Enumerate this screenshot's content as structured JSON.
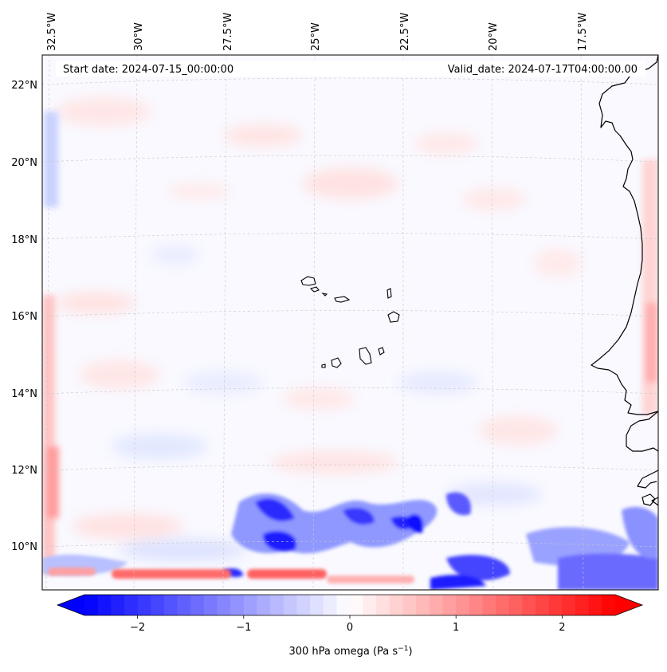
{
  "map": {
    "start_date_label": "Start date: 2024-07-15_00:00:00",
    "valid_date_label": "Valid_date: 2024-07-17T04:00:00.00",
    "lon_ticks": [
      "32.5°W",
      "30°W",
      "27.5°W",
      "25°W",
      "22.5°W",
      "20°W",
      "17.5°W"
    ],
    "lat_ticks": [
      "22°N",
      "20°N",
      "18°N",
      "16°N",
      "14°N",
      "12°N",
      "10°N"
    ],
    "region": {
      "lon_min": -33.0,
      "lon_max": -16.0,
      "lat_min": 8.8,
      "lat_max": 22.7
    },
    "field": "300 hPa omega",
    "features": [
      "West African coastline",
      "Cape Verde islands"
    ]
  },
  "colorbar": {
    "label_main": "300 hPa omega (Pa s",
    "label_exp": "−1",
    "label_close": ")",
    "ticks": [
      "−2",
      "−1",
      "0",
      "1",
      "2"
    ],
    "tick_values": [
      -2,
      -1,
      0,
      1,
      2
    ],
    "range": [
      -2.5,
      2.5
    ],
    "extend": "both",
    "colormap": "bwr",
    "colors": {
      "min": "#0000ff",
      "mid": "#ffffff",
      "max": "#ff0000"
    }
  }
}
